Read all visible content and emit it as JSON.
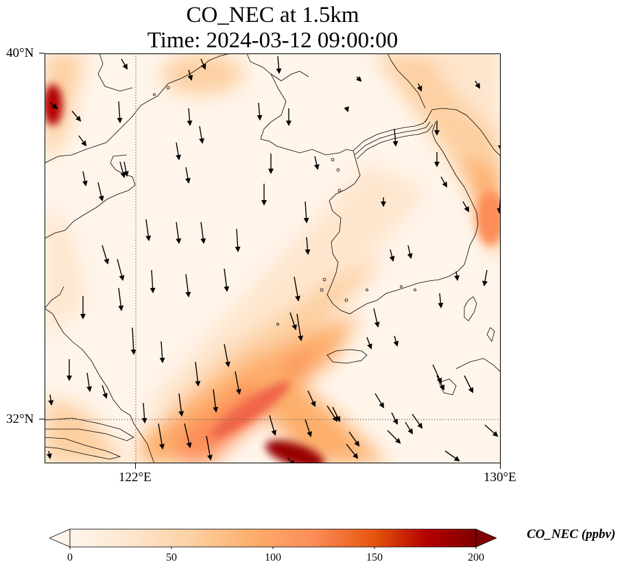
{
  "title": {
    "line1": "CO_NEC at 1.5km",
    "line2": "Time: 2024-03-12 09:00:00"
  },
  "map": {
    "lon_range": [
      120,
      130
    ],
    "lat_range": [
      31,
      40
    ],
    "lon_ticks": [
      "122°E",
      "130°E"
    ],
    "lat_ticks": [
      "40°N",
      "32°N"
    ],
    "gridlines": {
      "lon": 122,
      "lat": 32,
      "style": "dotted"
    },
    "features": [
      "coastlines",
      "wind-vectors",
      "co-concentration-field"
    ],
    "wind_direction": "mostly north-to-south",
    "colors": {
      "min": "#fff5eb",
      "mid": "#fdae6b",
      "high": "#e6550d",
      "max": "#7f0000"
    }
  },
  "colorbar": {
    "label": "CO_NEC (ppbv)",
    "ticks": [
      "0",
      "50",
      "100",
      "150",
      "200"
    ],
    "range": [
      0,
      200
    ],
    "extend": "both",
    "colormap": "OrRd"
  }
}
